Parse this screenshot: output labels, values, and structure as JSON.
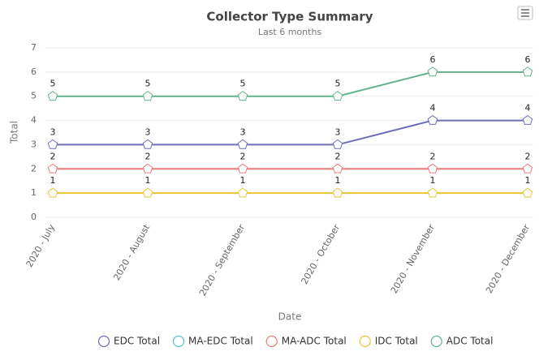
{
  "chart_data": {
    "type": "line",
    "title": "Collector Type Summary",
    "subtitle": "Last 6 months",
    "x_label": "Date",
    "y_label": "Total",
    "categories": [
      "2020 - July",
      "2020 - August",
      "2020 - September",
      "2020 - October",
      "2020 - November",
      "2020 - December"
    ],
    "series": [
      {
        "name": "EDC Total",
        "color": "#6d6db8",
        "values": [
          3,
          3,
          3,
          3,
          4,
          4
        ]
      },
      {
        "name": "MA-EDC Total",
        "color": "#4ec9c3",
        "values": [
          null,
          null,
          null,
          null,
          null,
          null
        ]
      },
      {
        "name": "MA-ADC Total",
        "color": "#ea7b7c",
        "values": [
          2,
          2,
          2,
          2,
          2,
          2
        ]
      },
      {
        "name": "IDC Total",
        "color": "#ebc33c",
        "values": [
          1,
          1,
          1,
          1,
          1,
          1
        ]
      },
      {
        "name": "ADC Total",
        "color": "#62b38d",
        "values": [
          5,
          5,
          5,
          5,
          6,
          6
        ]
      }
    ],
    "ylim": [
      0,
      7
    ],
    "yticks": [
      0,
      1,
      2,
      3,
      4,
      5,
      6,
      7
    ],
    "grid": true,
    "legend": "bottom"
  }
}
